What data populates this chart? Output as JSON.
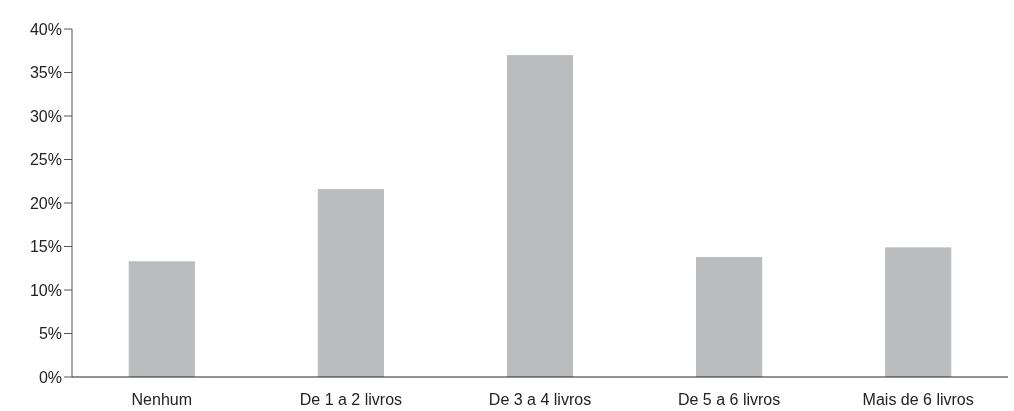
{
  "chart_data": {
    "type": "bar",
    "categories": [
      "Nenhum",
      "De 1 a 2 livros",
      "De 3 a 4 livros",
      "De 5 a 6 livros",
      "Mais de 6 livros"
    ],
    "values": [
      13.3,
      21.6,
      37.0,
      13.8,
      14.9
    ],
    "color": "#bbbcbe",
    "ylim": [
      0,
      40
    ],
    "yticks": [
      {
        "value": 0,
        "label": "0%"
      },
      {
        "value": 5,
        "label": "5%"
      },
      {
        "value": 10,
        "label": "10%"
      },
      {
        "value": 15,
        "label": "15%"
      },
      {
        "value": 20,
        "label": "20%"
      },
      {
        "value": 25,
        "label": "25%"
      },
      {
        "value": 30,
        "label": "30%"
      },
      {
        "value": 35,
        "label": "35%"
      },
      {
        "value": 40,
        "label": "40%"
      }
    ],
    "grid": false
  }
}
